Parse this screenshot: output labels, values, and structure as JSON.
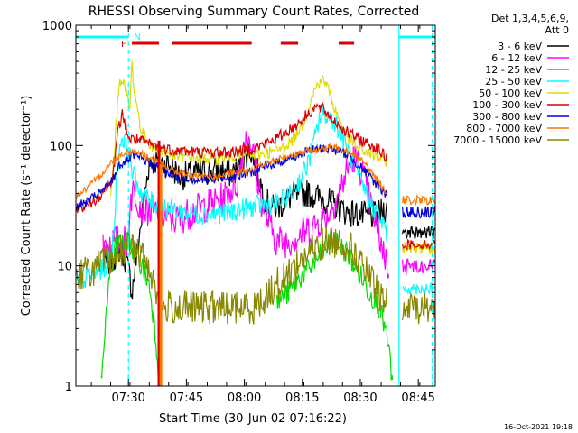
{
  "chart_data": {
    "type": "line",
    "title": "RHESSI Observing Summary Count Rates, Corrected",
    "xlabel": "Start Time (30-Jun-02 07:16:22)",
    "ylabel": "Corrected Count Rate (s⁻¹ detector⁻¹)",
    "x_unit": "minutes after 07:16:22",
    "xlim": [
      0,
      93
    ],
    "ylim": [
      1,
      1000
    ],
    "yscale": "log",
    "x_ticks": [
      {
        "x": 13.6,
        "label": "07:30"
      },
      {
        "x": 28.6,
        "label": "07:45"
      },
      {
        "x": 43.6,
        "label": "08:00"
      },
      {
        "x": 58.6,
        "label": "08:15"
      },
      {
        "x": 73.6,
        "label": "08:30"
      },
      {
        "x": 88.6,
        "label": "08:45"
      }
    ],
    "y_ticks": [
      {
        "y": 1,
        "label": "1"
      },
      {
        "y": 10,
        "label": "10"
      },
      {
        "y": 100,
        "label": "100"
      },
      {
        "y": 1000,
        "label": "1000"
      }
    ],
    "legend": {
      "header": [
        "Det 1,3,4,5,6,9,",
        "Att 0"
      ],
      "position": "right"
    },
    "series": [
      {
        "name": "3 - 6 keV",
        "color": "#000000",
        "noise": 0.12,
        "x": [
          7,
          9,
          10,
          11,
          12,
          13,
          14,
          14.5,
          19,
          24,
          27,
          30,
          33,
          36,
          38,
          40,
          42,
          43.5,
          45,
          47,
          49,
          51,
          53,
          56,
          60,
          65,
          70,
          75,
          78,
          80,
          80.5
        ],
        "y": [
          10,
          11,
          12,
          14,
          13,
          11,
          8,
          6,
          75,
          70,
          55,
          58,
          60,
          62,
          62,
          58,
          65,
          80,
          95,
          60,
          35,
          30,
          32,
          38,
          40,
          35,
          28,
          26,
          26,
          30,
          30
        ]
      },
      {
        "name": "6 - 12 keV",
        "color": "#ff00ff",
        "noise": 0.14,
        "x": [
          7,
          10,
          12,
          13.5,
          14,
          15,
          17,
          20,
          24,
          26,
          30,
          34,
          38,
          42,
          43.5,
          45,
          46,
          48,
          50,
          52,
          55,
          58,
          60,
          62,
          65,
          68,
          70,
          72,
          74,
          76,
          78,
          80,
          81
        ],
        "y": [
          15,
          16,
          16,
          16,
          35,
          42,
          31,
          28,
          25,
          24,
          28,
          32,
          36,
          50,
          110,
          120,
          80,
          35,
          22,
          16,
          16,
          18,
          20,
          22,
          26,
          40,
          60,
          80,
          62,
          35,
          20,
          12,
          9
        ]
      },
      {
        "name": "12 - 25 keV",
        "color": "#00dd00",
        "noise": 0.1,
        "x": [
          6.5,
          7,
          9,
          10,
          12,
          13,
          14.5,
          15,
          17,
          19,
          20,
          21,
          21.5
        ],
        "y": [
          1,
          2,
          10,
          14,
          16,
          16,
          15,
          13,
          10,
          7,
          4,
          2,
          1
        ]
      },
      {
        "name": "12 - 25 keV late",
        "color": "#00dd00",
        "noise": 0.1,
        "legend": false,
        "x": [
          52,
          55,
          58,
          61,
          64,
          66,
          68,
          70,
          73,
          76,
          78,
          79,
          80,
          81,
          82
        ],
        "y": [
          5,
          6,
          8,
          10,
          13,
          16,
          15,
          13,
          9,
          6,
          5,
          4,
          3,
          2,
          1
        ]
      },
      {
        "name": "25 - 50 keV",
        "color": "#00ffff",
        "noise": 0.09,
        "x": [
          0,
          3,
          6,
          8,
          9.5,
          10.5,
          11.5,
          12.5,
          13,
          14,
          15,
          17,
          20,
          24,
          28,
          32,
          36,
          40,
          44,
          48,
          52,
          56,
          60,
          62,
          63,
          65,
          67,
          70,
          73,
          76,
          78,
          80,
          80.5
        ],
        "y": [
          7,
          8,
          9,
          10,
          14,
          50,
          110,
          115,
          100,
          80,
          55,
          40,
          33,
          30,
          28,
          27,
          27,
          28,
          30,
          32,
          33,
          40,
          70,
          120,
          170,
          180,
          160,
          100,
          55,
          35,
          28,
          20,
          18
        ]
      },
      {
        "name": "50 - 100 keV",
        "color": "#dddd00",
        "noise": 0.05,
        "x": [
          9,
          10,
          11,
          12,
          13,
          14,
          14.5,
          15,
          17,
          20,
          24,
          28,
          32,
          36,
          40,
          44,
          48,
          52,
          56,
          59,
          62,
          63.5,
          65,
          67,
          70,
          73,
          76,
          78,
          80,
          80.5
        ],
        "y": [
          36,
          90,
          300,
          370,
          280,
          200,
          530,
          300,
          130,
          95,
          85,
          80,
          78,
          78,
          80,
          82,
          85,
          90,
          110,
          160,
          300,
          360,
          320,
          200,
          120,
          95,
          85,
          80,
          75,
          75
        ]
      },
      {
        "name": "100 - 300 keV",
        "color": "#dd0000",
        "noise": 0.05,
        "x": [
          0,
          3,
          6,
          9,
          10,
          11,
          12,
          13,
          14,
          15,
          17,
          20,
          24,
          28,
          32,
          36,
          40,
          44,
          48,
          52,
          56,
          59,
          62,
          64,
          66,
          70,
          74,
          78,
          80,
          80.5
        ],
        "y": [
          30,
          32,
          38,
          50,
          70,
          140,
          180,
          140,
          110,
          115,
          108,
          100,
          93,
          90,
          88,
          87,
          88,
          92,
          100,
          115,
          140,
          170,
          210,
          200,
          170,
          130,
          110,
          95,
          80,
          80
        ]
      },
      {
        "name": "300 - 800 keV",
        "color": "#0000dd",
        "noise": 0.04,
        "x": [
          0,
          3,
          6,
          8,
          10,
          11,
          13,
          15,
          17,
          20,
          22,
          25,
          28,
          32,
          36,
          40,
          44,
          48,
          52,
          56,
          60,
          64,
          66,
          68,
          70,
          72,
          74,
          76,
          78,
          80,
          80.5
        ],
        "y": [
          31,
          34,
          40,
          45,
          55,
          68,
          75,
          82,
          78,
          70,
          63,
          57,
          54,
          52,
          52,
          55,
          58,
          65,
          72,
          80,
          90,
          95,
          94,
          90,
          85,
          75,
          65,
          55,
          47,
          40,
          40
        ]
      },
      {
        "name": "800 - 7000 keV",
        "color": "#ff7700",
        "noise": 0.03,
        "x": [
          0,
          3,
          6,
          8,
          10,
          12,
          14,
          16,
          18,
          20,
          22,
          25,
          28,
          32,
          36,
          40,
          44,
          48,
          52,
          56,
          60,
          64,
          66,
          68,
          70,
          72,
          74,
          76,
          78,
          80,
          80.5
        ],
        "y": [
          38,
          44,
          55,
          65,
          78,
          85,
          90,
          88,
          82,
          76,
          70,
          62,
          58,
          55,
          55,
          58,
          62,
          68,
          76,
          85,
          90,
          95,
          96,
          95,
          92,
          85,
          75,
          63,
          52,
          42,
          42
        ]
      },
      {
        "name": "7000 - 15000 keV",
        "color": "#888800",
        "noise": 0.14,
        "x": [
          0,
          2,
          4,
          6,
          8,
          10,
          12,
          14,
          16,
          18,
          20,
          21,
          22,
          22.5,
          24,
          28,
          32,
          36,
          40,
          44,
          46,
          48,
          50,
          52,
          54,
          56,
          58,
          60,
          62,
          64,
          66,
          68,
          70,
          72,
          74,
          76,
          78,
          80,
          80.5
        ],
        "y": [
          8,
          9,
          9,
          10,
          11,
          12,
          14,
          15,
          13,
          11,
          8,
          6,
          4.5,
          4.5,
          4.5,
          4.5,
          4.5,
          4.5,
          4.5,
          4.5,
          4.5,
          5,
          6,
          7,
          8,
          9.5,
          11,
          12.5,
          14,
          15.5,
          16,
          16,
          15,
          13,
          10,
          8,
          6,
          5,
          5
        ]
      },
      {
        "name": "black tail",
        "color": "#000000",
        "noise": 0.06,
        "legend": false,
        "x": [
          84.5,
          86,
          88,
          90,
          92,
          93
        ],
        "y": [
          19,
          19,
          19,
          19,
          19,
          19
        ]
      },
      {
        "name": "magenta tail",
        "color": "#ff00ff",
        "noise": 0.06,
        "legend": false,
        "x": [
          84.5,
          86,
          88,
          90,
          92,
          93
        ],
        "y": [
          10,
          10,
          10,
          10,
          10,
          10
        ]
      },
      {
        "name": "cyan tail",
        "color": "#00ffff",
        "noise": 0.05,
        "legend": false,
        "x": [
          84.5,
          86,
          88,
          90,
          92,
          93
        ],
        "y": [
          6.5,
          6.5,
          6.5,
          6.5,
          6.5,
          6.5
        ]
      },
      {
        "name": "yellow tail",
        "color": "#dddd00",
        "noise": 0.05,
        "legend": false,
        "x": [
          84.5,
          86,
          88,
          90,
          92,
          93
        ],
        "y": [
          14,
          14,
          14,
          14,
          14,
          14
        ]
      },
      {
        "name": "red tail",
        "color": "#dd0000",
        "noise": 0.04,
        "legend": false,
        "x": [
          84.5,
          86,
          88,
          90,
          92,
          93
        ],
        "y": [
          15,
          15,
          15,
          15,
          15,
          15
        ]
      },
      {
        "name": "blue tail",
        "color": "#0000dd",
        "noise": 0.05,
        "legend": false,
        "x": [
          84.5,
          86,
          88,
          90,
          92,
          93
        ],
        "y": [
          28,
          28,
          28,
          28,
          28,
          28
        ]
      },
      {
        "name": "orange tail",
        "color": "#ff7700",
        "noise": 0.04,
        "legend": false,
        "x": [
          84.5,
          86,
          88,
          90,
          92,
          93
        ],
        "y": [
          35,
          35,
          35,
          35,
          35,
          35
        ]
      },
      {
        "name": "olive tail",
        "color": "#888800",
        "noise": 0.14,
        "legend": false,
        "x": [
          84.5,
          86,
          88,
          90,
          92,
          93
        ],
        "y": [
          4,
          4.5,
          4.5,
          4.5,
          4.5,
          4.5
        ]
      }
    ],
    "spikes": [
      {
        "x": 21.5,
        "y_low": 1,
        "y_high": 110,
        "color": "#dd0000"
      },
      {
        "x": 22,
        "y_low": 1,
        "y_high": 70,
        "color": "#ff7700"
      }
    ],
    "flag_bars": [
      {
        "label": "F",
        "color": "#dd0000",
        "x": [
          [
            14.5,
            21.5
          ],
          [
            25,
            45.5
          ],
          [
            53,
            57.5
          ],
          [
            68,
            72
          ]
        ]
      },
      {
        "label": "N",
        "color": "#00ffff",
        "x": [
          [
            0,
            13.6
          ],
          [
            83.6,
            93
          ]
        ]
      }
    ],
    "markers": [
      {
        "type": "solid",
        "x": 83.6,
        "color": "#00ffff"
      },
      {
        "type": "dashed",
        "x": 13.6,
        "color": "#00ffff"
      },
      {
        "type": "dashed",
        "x": 92.2,
        "color": "#00ffff"
      }
    ]
  },
  "legend_items": [
    {
      "label": "3 - 6 keV",
      "color": "#000000"
    },
    {
      "label": "6 - 12 keV",
      "color": "#ff00ff"
    },
    {
      "label": "12 - 25 keV",
      "color": "#00dd00"
    },
    {
      "label": "25 - 50 keV",
      "color": "#00ffff"
    },
    {
      "label": "50 - 100 keV",
      "color": "#dddd00"
    },
    {
      "label": "100 - 300 keV",
      "color": "#dd0000"
    },
    {
      "label": "300 - 800 keV",
      "color": "#0000dd"
    },
    {
      "label": "800 - 7000 keV",
      "color": "#ff7700"
    },
    {
      "label": "7000 - 15000 keV",
      "color": "#888800"
    }
  ],
  "footer": {
    "timestamp": "16-Oct-2021 19:18"
  }
}
